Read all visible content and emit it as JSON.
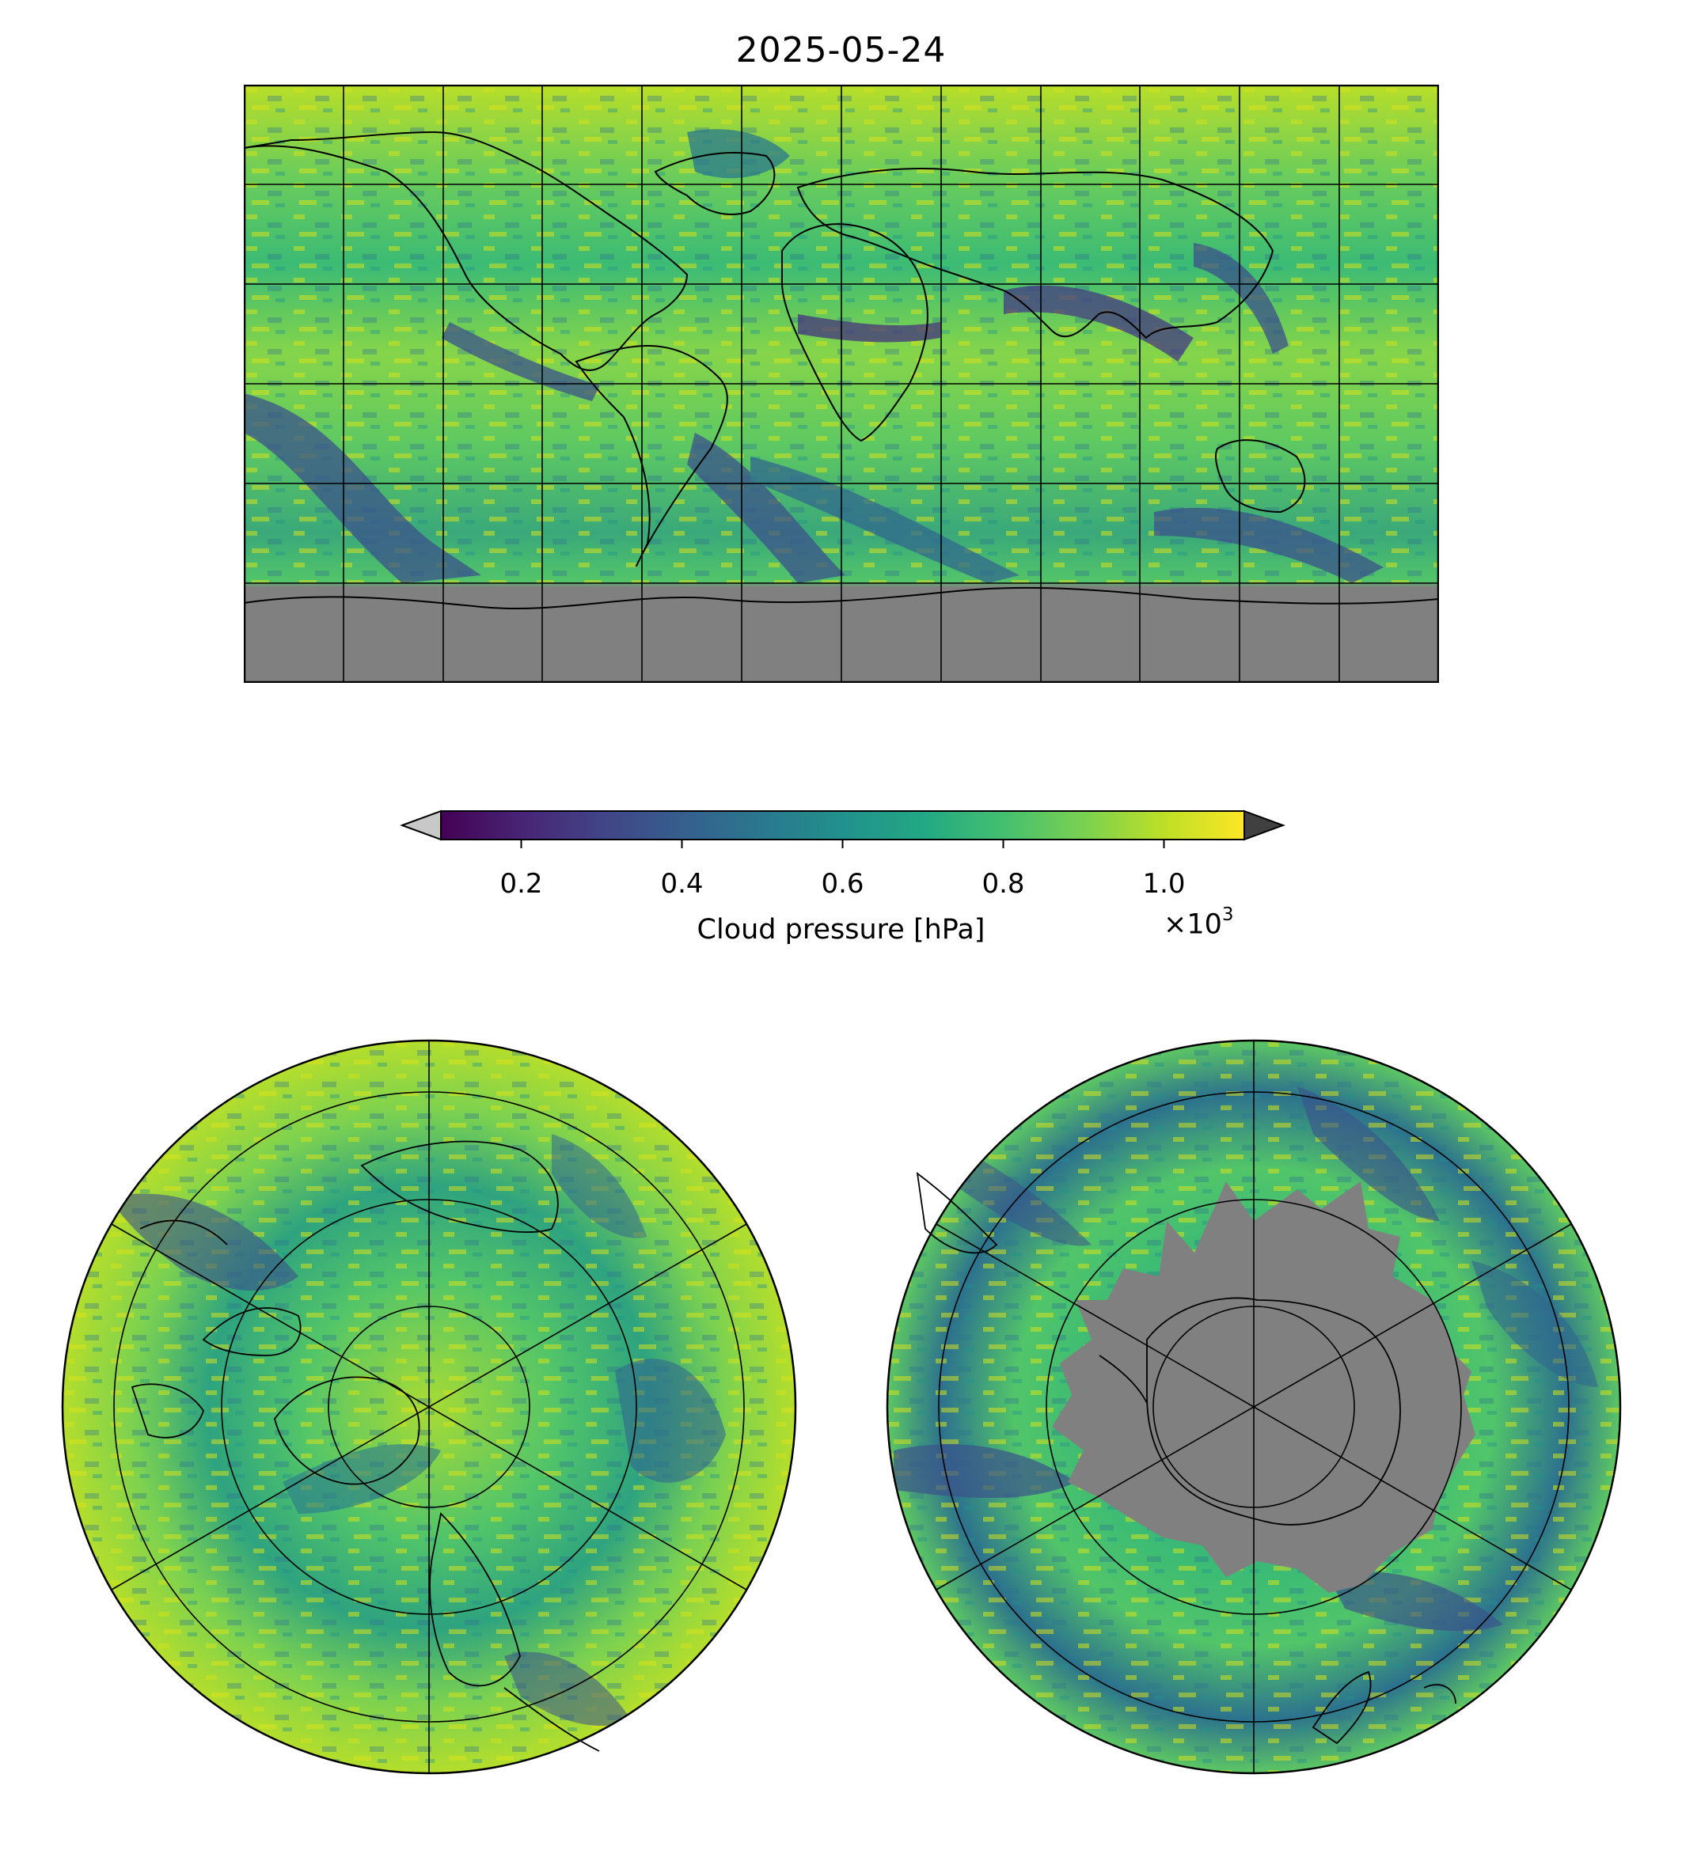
{
  "map": {
    "date": "2025-05-24",
    "panels": [
      "global-equirectangular",
      "north-polar-stereographic",
      "south-polar-stereographic"
    ],
    "missing_data_color": "#808080",
    "colormap": "viridis"
  },
  "colorbar": {
    "label": "Cloud pressure [hPa]",
    "ticks": [
      "0.2",
      "0.4",
      "0.6",
      "0.8",
      "1.0"
    ],
    "tick_values": [
      0.2,
      0.4,
      0.6,
      0.8,
      1.0
    ],
    "range": [
      0.1,
      1.1
    ],
    "offset_text": "×10",
    "offset_exponent": "3",
    "extend": "both",
    "under_color": "#c8c8c8",
    "over_color": "#404040"
  }
}
